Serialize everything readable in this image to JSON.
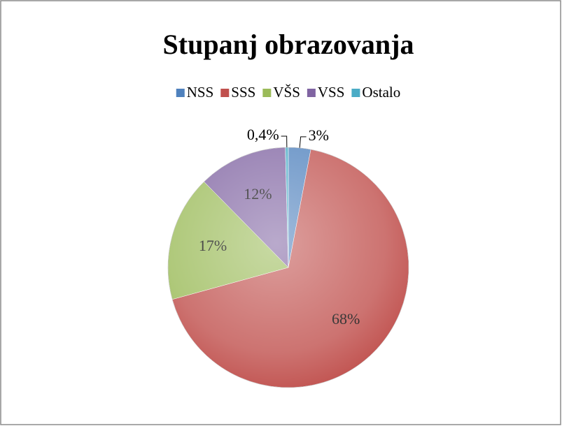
{
  "chart_data": {
    "type": "pie",
    "title": "Stupanj obrazovanja",
    "categories": [
      "NSS",
      "SSS",
      "VŠS",
      "VSS",
      "Ostalo"
    ],
    "values": [
      3,
      68,
      17,
      12,
      0.4
    ],
    "value_labels": [
      "3%",
      "68%",
      "17%",
      "12%",
      "0,4%"
    ],
    "colors": [
      "#4f81bd",
      "#c0504d",
      "#9bbb59",
      "#8064a2",
      "#4bacc6"
    ],
    "legend": "top"
  }
}
